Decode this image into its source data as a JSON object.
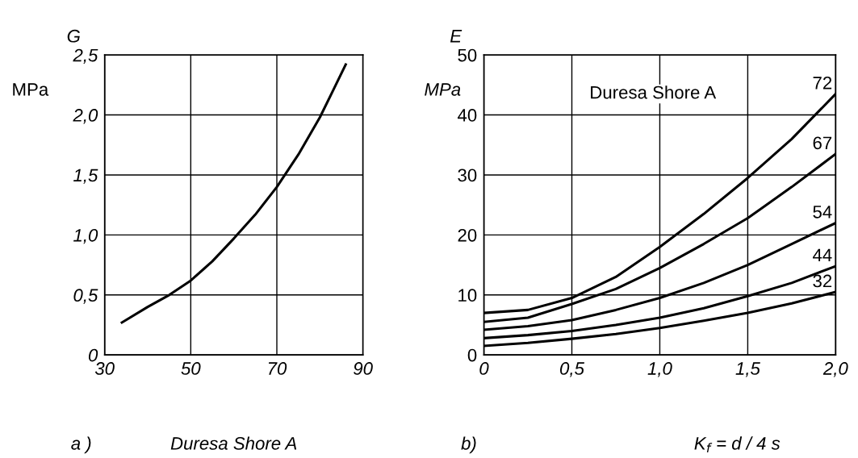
{
  "chart_data": [
    {
      "type": "line",
      "ylabel": "G",
      "xlabel": "Duresa Shore A",
      "annotations": [
        "MPa",
        "a )"
      ],
      "xlim": [
        30,
        90
      ],
      "ylim": [
        0,
        2.5
      ],
      "xticks": [
        30,
        50,
        70,
        90
      ],
      "yticks": [
        0,
        {
          "value": 0.5,
          "label": "0,5"
        },
        {
          "value": 1.0,
          "label": "1,0"
        },
        {
          "value": 1.5,
          "label": "1,5"
        },
        {
          "value": 2.0,
          "label": "2,0"
        },
        {
          "value": 2.5,
          "label": "2,5"
        }
      ],
      "grid": true,
      "series": [
        {
          "color": "#000000",
          "x": [
            34,
            40,
            45,
            50,
            55,
            60,
            65,
            70,
            75,
            80,
            83,
            86
          ],
          "values": [
            0.27,
            0.4,
            0.5,
            0.62,
            0.78,
            0.97,
            1.17,
            1.4,
            1.67,
            1.98,
            2.2,
            2.42
          ]
        }
      ]
    },
    {
      "type": "line",
      "ylabel": "E",
      "xlabel": "K$_{f}$ = d / 4 s",
      "annotations": [
        "MPa",
        "Duresa Shore A",
        "b)"
      ],
      "xlim": [
        0,
        2.0
      ],
      "ylim": [
        0,
        50
      ],
      "xticks": [
        0,
        {
          "value": 0.5,
          "label": "0,5"
        },
        {
          "value": 1.0,
          "label": "1,0"
        },
        {
          "value": 1.5,
          "label": "1,5"
        },
        {
          "value": 2.0,
          "label": "2,0"
        }
      ],
      "yticks": [
        0,
        10,
        20,
        30,
        40,
        50
      ],
      "grid": true,
      "x": [
        0,
        0.25,
        0.5,
        0.75,
        1.0,
        1.25,
        1.5,
        1.75,
        2.0
      ],
      "series": [
        {
          "name": "72",
          "color": "#000000",
          "values": [
            7,
            7.5,
            9.5,
            13,
            18,
            23.5,
            29.5,
            36,
            43.5
          ]
        },
        {
          "name": "67",
          "color": "#000000",
          "values": [
            5.5,
            6.2,
            8.5,
            11,
            14.5,
            18.5,
            22.8,
            28,
            33.5
          ]
        },
        {
          "name": "54",
          "color": "#000000",
          "values": [
            4.2,
            4.8,
            5.8,
            7.5,
            9.5,
            12,
            15,
            18.5,
            22
          ]
        },
        {
          "name": "44",
          "color": "#000000",
          "values": [
            2.8,
            3.3,
            4,
            5,
            6.2,
            7.8,
            9.8,
            12,
            14.8
          ]
        },
        {
          "name": "32",
          "color": "#000000",
          "values": [
            1.5,
            2,
            2.7,
            3.5,
            4.5,
            5.7,
            7,
            8.6,
            10.5
          ]
        }
      ]
    }
  ]
}
